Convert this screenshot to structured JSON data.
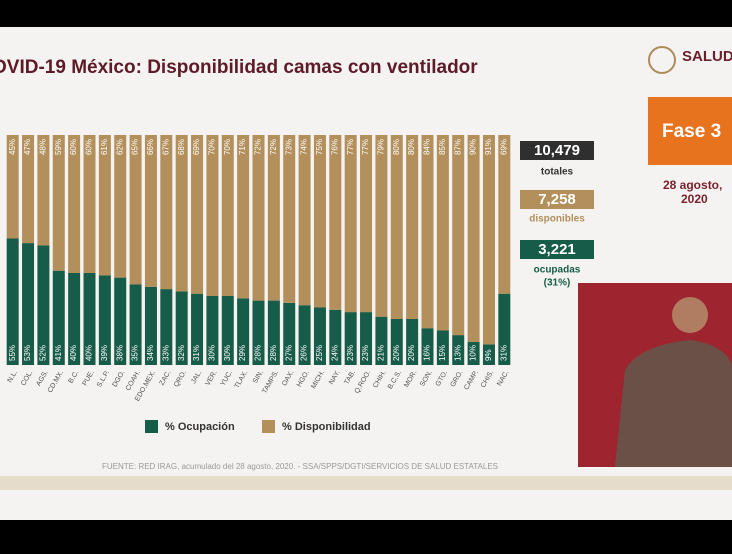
{
  "header": {
    "title": "OVID-19 México: Disponibilidad camas con ventilador",
    "logo": "SALUD"
  },
  "chart_data": {
    "type": "bar",
    "stacked": true,
    "categories": [
      "N.L.",
      "COL.",
      "AGS.",
      "CD.MX.",
      "B.C.",
      "PUE.",
      "S.L.P.",
      "DGO.",
      "COAH.",
      "EDO.MEX.",
      "ZAC.",
      "QRO.",
      "JAL.",
      "VER.",
      "YUC.",
      "TLAX.",
      "SIN.",
      "TAMPS.",
      "OAX.",
      "HGO.",
      "MICH.",
      "NAY.",
      "TAB.",
      "Q.ROO.",
      "CHIH.",
      "B.C.S.",
      "MOR.",
      "SON.",
      "GTO.",
      "GRO.",
      "CAMP.",
      "CHIS.",
      "NAC."
    ],
    "series": [
      {
        "name": "% Ocupación",
        "color": "#175c48",
        "values": [
          55,
          53,
          52,
          41,
          40,
          40,
          39,
          38,
          35,
          34,
          33,
          32,
          31,
          30,
          30,
          29,
          28,
          28,
          27,
          26,
          25,
          24,
          23,
          23,
          21,
          20,
          20,
          16,
          15,
          13,
          10,
          9,
          31
        ],
        "value_labels": [
          "55%",
          "53%",
          "52%",
          "41%",
          "40%",
          "40%",
          "39%",
          "38%",
          "35%",
          "34%",
          "33%",
          "32%",
          "31%",
          "30%",
          "30%",
          "29%",
          "28%",
          "28%",
          "27%",
          "26%",
          "25%",
          "24%",
          "23%",
          "23%",
          "21%",
          "20%",
          "20%",
          "16%",
          "15%",
          "13%",
          "10%",
          "9%",
          "31%"
        ]
      },
      {
        "name": "% Disponibilidad",
        "color": "#b38f5b",
        "values": [
          45,
          47,
          48,
          59,
          60,
          60,
          61,
          62,
          65,
          66,
          67,
          68,
          69,
          70,
          70,
          71,
          72,
          72,
          73,
          74,
          75,
          76,
          77,
          77,
          79,
          80,
          80,
          84,
          85,
          87,
          90,
          91,
          69
        ],
        "value_labels": [
          "45%",
          "47%",
          "48%",
          "59%",
          "60%",
          "60%",
          "61%",
          "62%",
          "65%",
          "66%",
          "67%",
          "68%",
          "69%",
          "70%",
          "70%",
          "71%",
          "72%",
          "72%",
          "73%",
          "74%",
          "75%",
          "76%",
          "77%",
          "77%",
          "79%",
          "80%",
          "80%",
          "84%",
          "85%",
          "87%",
          "90%",
          "91%",
          "69%"
        ]
      }
    ],
    "ylim": [
      0,
      100
    ]
  },
  "stats": [
    {
      "value": "10,479",
      "label": "totales"
    },
    {
      "value": "7,258",
      "label": "disponibles"
    },
    {
      "value": "3,221",
      "label": "ocupadas",
      "note": "(31%)"
    }
  ],
  "phase": "Fase 3",
  "date": [
    "28 agosto,",
    "2020"
  ],
  "footer": "FUENTE: RED IRAG, acumulado del 28 agosto, 2020.  -  SSA/SPPS/DGTI/SERVICIOS DE SALUD ESTATALES"
}
